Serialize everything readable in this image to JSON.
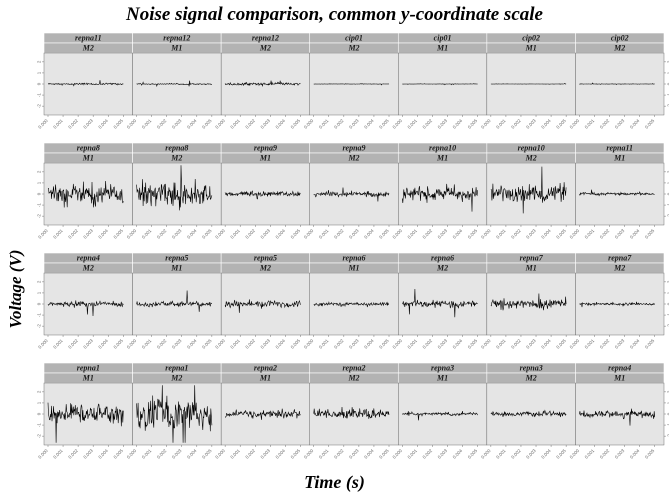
{
  "chart_data": {
    "type": "line",
    "title": "Noise signal comparison, common y-coordinate scale",
    "xlabel": "Time (s)",
    "ylabel": "Voltage (V)",
    "layout": "faceted grid, 4 rows x 7 columns, shared y scale",
    "grid": false,
    "background": "#e5e5e5",
    "strip_color": "#b3b3b3",
    "line_color": "#000000",
    "x_range": [
      0,
      0.005
    ],
    "x_ticks": [
      "0.000",
      "0.001",
      "0.002",
      "0.003",
      "0.004",
      "0.005"
    ],
    "y_ticks": [
      "-2",
      "-1",
      "0",
      "1",
      "2"
    ],
    "panels": [
      {
        "sensor": "repna11",
        "method": "M2",
        "amplitude": 0.08
      },
      {
        "sensor": "repna12",
        "method": "M1",
        "amplitude": 0.05
      },
      {
        "sensor": "repna12",
        "method": "M2",
        "amplitude": 0.12
      },
      {
        "sensor": "cip01",
        "method": "M2",
        "amplitude": 0.02
      },
      {
        "sensor": "cip01",
        "method": "M1",
        "amplitude": 0.02
      },
      {
        "sensor": "cip02",
        "method": "M1",
        "amplitude": 0.015
      },
      {
        "sensor": "cip02",
        "method": "M2",
        "amplitude": 0.02
      },
      {
        "sensor": "repna8",
        "method": "M1",
        "amplitude": 1.0
      },
      {
        "sensor": "repna8",
        "method": "M2",
        "amplitude": 1.2
      },
      {
        "sensor": "repna9",
        "method": "M1",
        "amplitude": 0.25
      },
      {
        "sensor": "repna9",
        "method": "M2",
        "amplitude": 0.22
      },
      {
        "sensor": "repna10",
        "method": "M1",
        "amplitude": 0.6
      },
      {
        "sensor": "repna10",
        "method": "M2",
        "amplitude": 0.85
      },
      {
        "sensor": "repna11",
        "method": "M1",
        "amplitude": 0.12
      },
      {
        "sensor": "repna4",
        "method": "M2",
        "amplitude": 0.25
      },
      {
        "sensor": "repna5",
        "method": "M1",
        "amplitude": 0.25
      },
      {
        "sensor": "repna5",
        "method": "M2",
        "amplitude": 0.35
      },
      {
        "sensor": "repna6",
        "method": "M1",
        "amplitude": 0.15
      },
      {
        "sensor": "repna6",
        "method": "M2",
        "amplitude": 0.3
      },
      {
        "sensor": "repna7",
        "method": "M1",
        "amplitude": 0.45
      },
      {
        "sensor": "repna7",
        "method": "M2",
        "amplitude": 0.12
      },
      {
        "sensor": "repna1",
        "method": "M1",
        "amplitude": 0.9
      },
      {
        "sensor": "repna1",
        "method": "M2",
        "amplitude": 1.6
      },
      {
        "sensor": "repna2",
        "method": "M1",
        "amplitude": 0.35
      },
      {
        "sensor": "repna2",
        "method": "M2",
        "amplitude": 0.45
      },
      {
        "sensor": "repna3",
        "method": "M1",
        "amplitude": 0.15
      },
      {
        "sensor": "repna3",
        "method": "M2",
        "amplitude": 0.2
      },
      {
        "sensor": "repna4",
        "method": "M1",
        "amplitude": 0.35
      }
    ]
  }
}
